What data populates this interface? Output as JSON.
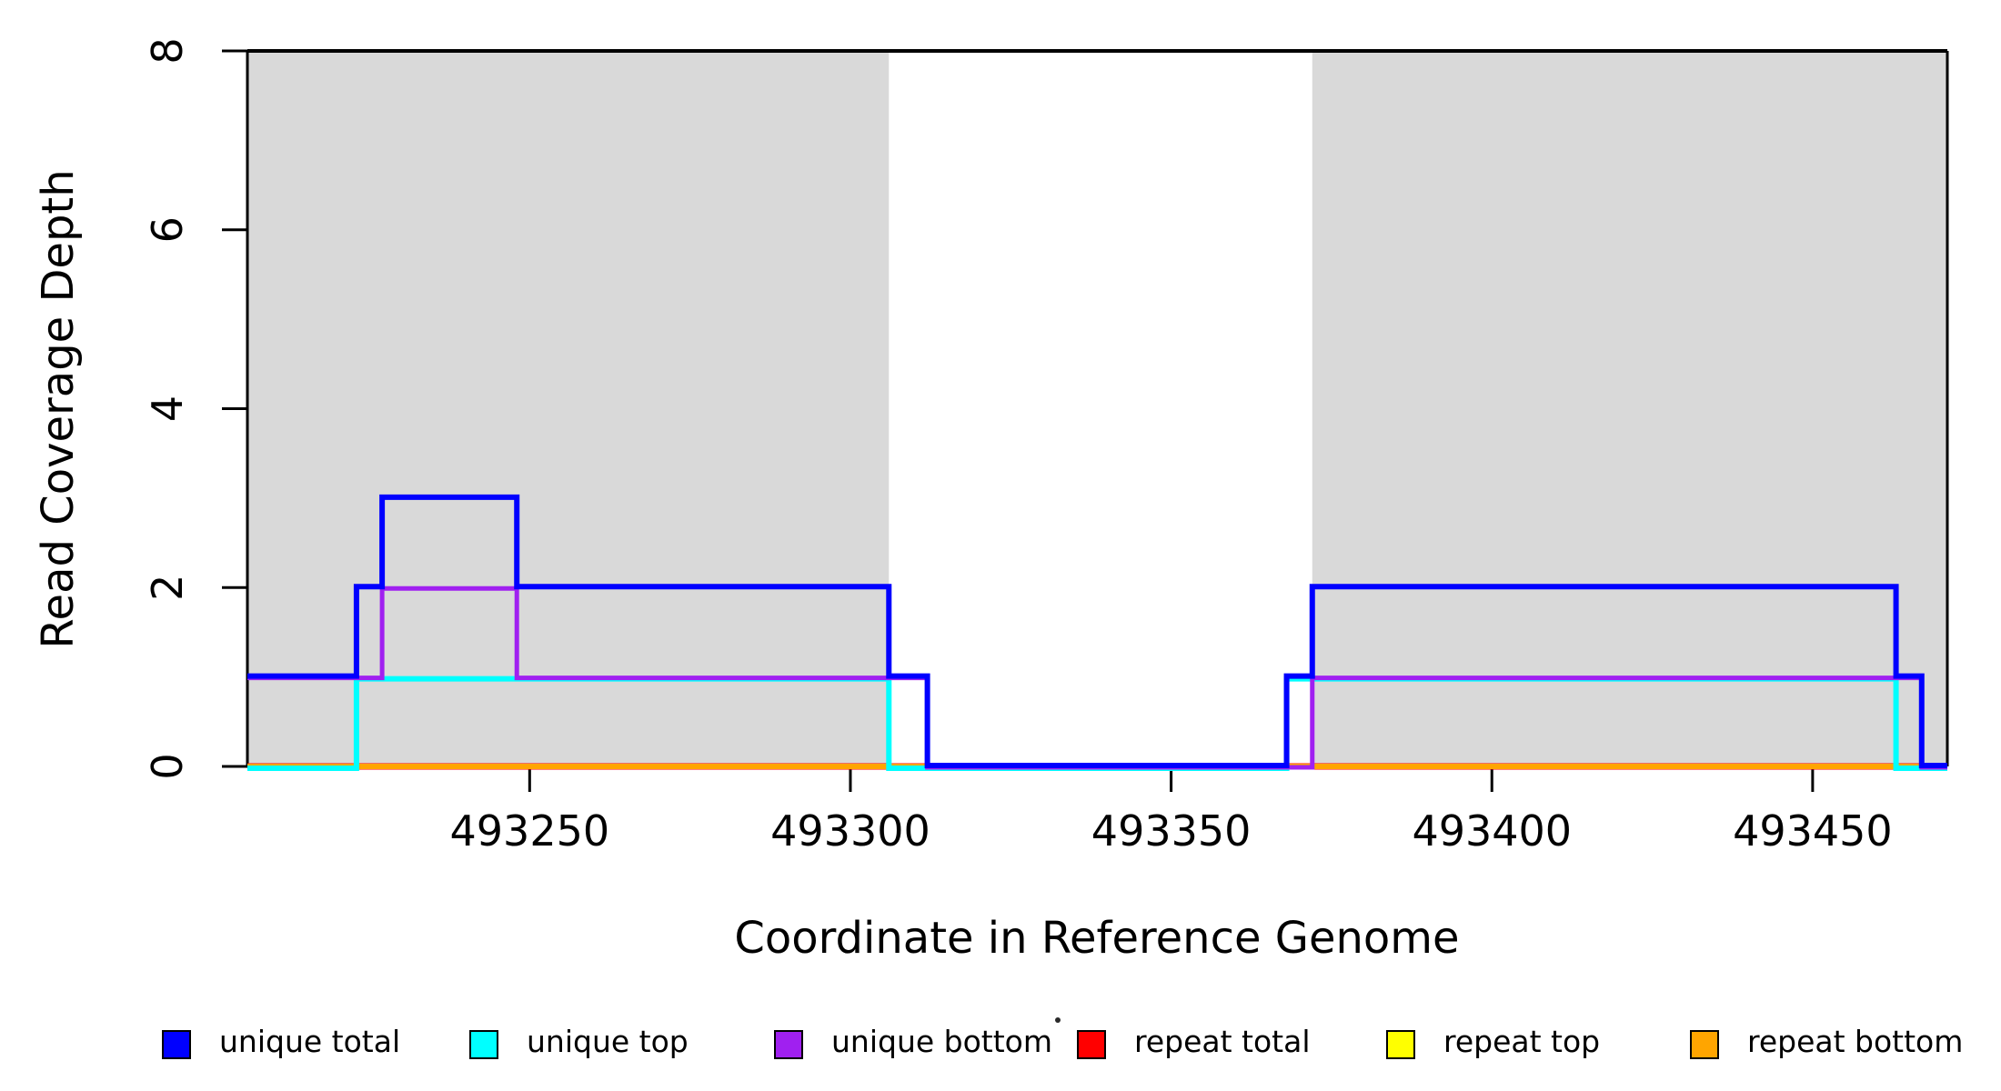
{
  "chart_data": {
    "type": "line",
    "subtype": "step-coverage-plot",
    "title": "",
    "xlabel": "Coordinate in Reference Genome",
    "ylabel": "Read Coverage Depth",
    "xlim": [
      493206,
      493471
    ],
    "ylim": [
      0,
      8
    ],
    "x_ticks": [
      493250,
      493300,
      493350,
      493400,
      493450
    ],
    "y_ticks": [
      0,
      2,
      4,
      6,
      8
    ],
    "grid": "off",
    "shade_color": "#D9D9D9",
    "shaded_regions": [
      {
        "from": 493206,
        "to": 493306
      },
      {
        "from": 493372,
        "to": 493471
      }
    ],
    "series": [
      {
        "name": "repeat total",
        "color": "#FF0000",
        "width": 7,
        "offset": 0,
        "points": [
          [
            493206,
            0
          ],
          [
            493471,
            0
          ]
        ]
      },
      {
        "name": "repeat top",
        "color": "#FFFF00",
        "width": 5,
        "offset": 0,
        "points": [
          [
            493206,
            0
          ],
          [
            493471,
            0
          ]
        ]
      },
      {
        "name": "repeat bottom",
        "color": "#FFA500",
        "width": 6,
        "offset": 0,
        "points": [
          [
            493206,
            0
          ],
          [
            493471,
            0
          ]
        ]
      },
      {
        "name": "unique top",
        "color": "#00FFFF",
        "width": 6,
        "offset": 2,
        "points": [
          [
            493206,
            0
          ],
          [
            493223,
            1
          ],
          [
            493306,
            0
          ],
          [
            493368,
            1
          ],
          [
            493463,
            0
          ],
          [
            493471,
            0
          ]
        ]
      },
      {
        "name": "unique bottom",
        "color": "#A020F0",
        "width": 5,
        "offset": 1,
        "points": [
          [
            493206,
            1
          ],
          [
            493227,
            2
          ],
          [
            493248,
            1
          ],
          [
            493312,
            0
          ],
          [
            493372,
            1
          ],
          [
            493467,
            0
          ],
          [
            493471,
            0
          ]
        ]
      },
      {
        "name": "unique total",
        "color": "#0000FF",
        "width": 6,
        "offset": -1,
        "points": [
          [
            493206,
            1
          ],
          [
            493223,
            2
          ],
          [
            493227,
            3
          ],
          [
            493248,
            2
          ],
          [
            493306,
            1
          ],
          [
            493312,
            0
          ],
          [
            493368,
            1
          ],
          [
            493372,
            2
          ],
          [
            493463,
            1
          ],
          [
            493467,
            0
          ],
          [
            493471,
            0
          ]
        ]
      }
    ],
    "legend": {
      "position": "bottom",
      "entries": [
        {
          "label": "unique total",
          "color": "#0000FF"
        },
        {
          "label": "unique top",
          "color": "#00FFFF"
        },
        {
          "label": "unique bottom",
          "color": "#A020F0"
        },
        {
          "label": "repeat total",
          "color": "#FF0000"
        },
        {
          "label": "repeat top",
          "color": "#FFFF00"
        },
        {
          "label": "repeat bottom",
          "color": "#FFA500"
        }
      ]
    }
  }
}
